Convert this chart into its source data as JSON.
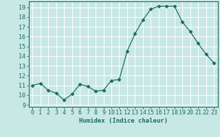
{
  "x": [
    0,
    1,
    2,
    3,
    4,
    5,
    6,
    7,
    8,
    9,
    10,
    11,
    12,
    13,
    14,
    15,
    16,
    17,
    18,
    19,
    20,
    21,
    22,
    23
  ],
  "y": [
    11.0,
    11.2,
    10.5,
    10.2,
    9.5,
    10.1,
    11.1,
    10.9,
    10.4,
    10.5,
    11.5,
    11.6,
    14.5,
    16.3,
    17.7,
    18.8,
    19.1,
    19.1,
    19.1,
    17.5,
    16.5,
    15.3,
    14.2,
    13.3
  ],
  "line_color": "#1a6b60",
  "marker": "D",
  "marker_size": 2.5,
  "bg_color": "#c8e8e5",
  "grid_color": "#ffffff",
  "xlabel": "Humidex (Indice chaleur)",
  "ylabel_ticks": [
    9,
    10,
    11,
    12,
    13,
    14,
    15,
    16,
    17,
    18,
    19
  ],
  "ylim": [
    8.8,
    19.6
  ],
  "xlim": [
    -0.5,
    23.5
  ],
  "tick_color": "#1a6b60",
  "label_fontsize": 6,
  "axis_fontsize": 6.5
}
